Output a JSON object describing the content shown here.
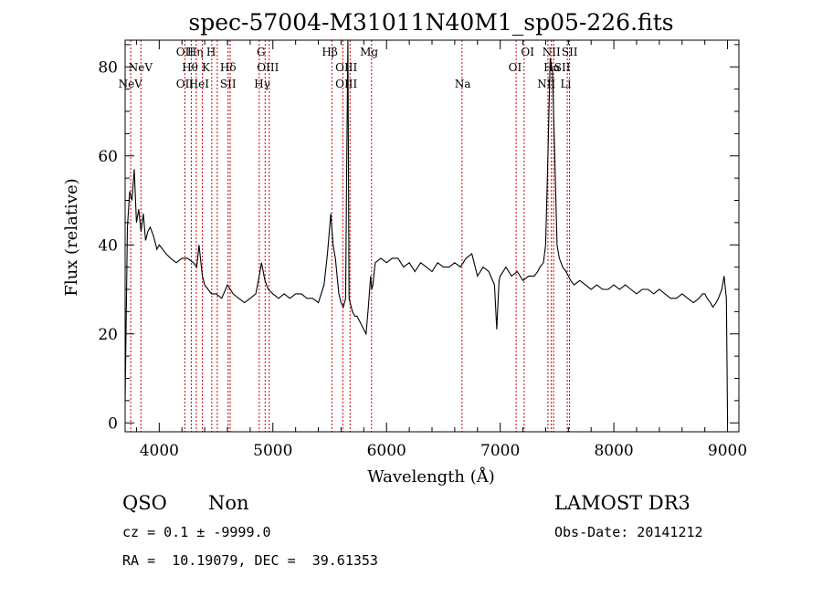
{
  "chart_data": {
    "type": "line",
    "title": "spec-57004-M31011N40M1_sp05-226.fits",
    "xlabel": "Wavelength (Å)",
    "ylabel": "Flux (relative)",
    "xlim": [
      3700,
      9100
    ],
    "ylim": [
      -2,
      86
    ],
    "x_ticks": [
      4000,
      5000,
      6000,
      7000,
      8000,
      9000
    ],
    "y_ticks": [
      0,
      20,
      40,
      60,
      80
    ],
    "grid": false,
    "line_color": "#000000",
    "marker_color": "#cc0000",
    "series": [
      {
        "x": [
          3700,
          3720,
          3740,
          3760,
          3780,
          3800,
          3820,
          3840,
          3860,
          3880,
          3900,
          3920,
          3950,
          3980,
          4000,
          4030,
          4060,
          4100,
          4150,
          4200,
          4250,
          4300,
          4330,
          4350,
          4380,
          4400,
          4430,
          4460,
          4500,
          4550,
          4600,
          4650,
          4700,
          4750,
          4800,
          4850,
          4880,
          4900,
          4930,
          4960,
          5000,
          5050,
          5100,
          5150,
          5200,
          5250,
          5300,
          5350,
          5400,
          5450,
          5480,
          5500,
          5510,
          5530,
          5550,
          5580,
          5600,
          5620,
          5640,
          5650,
          5660,
          5670,
          5680,
          5690,
          5700,
          5720,
          5740,
          5760,
          5780,
          5800,
          5820,
          5840,
          5860,
          5870,
          5880,
          5900,
          5950,
          6000,
          6050,
          6100,
          6150,
          6200,
          6250,
          6300,
          6350,
          6400,
          6450,
          6500,
          6550,
          6600,
          6650,
          6700,
          6750,
          6800,
          6850,
          6900,
          6950,
          6970,
          6990,
          7000,
          7050,
          7100,
          7150,
          7200,
          7250,
          7300,
          7330,
          7350,
          7380,
          7400,
          7420,
          7440,
          7460,
          7480,
          7500,
          7520,
          7550,
          7580,
          7600,
          7620,
          7650,
          7700,
          7750,
          7800,
          7850,
          7900,
          7950,
          8000,
          8050,
          8100,
          8150,
          8200,
          8250,
          8300,
          8350,
          8400,
          8450,
          8500,
          8550,
          8600,
          8650,
          8700,
          8750,
          8780,
          8800,
          8820,
          8850,
          8870,
          8900,
          8920,
          8950,
          8970,
          8990,
          9000
        ],
        "y": [
          5,
          44,
          52,
          50,
          57,
          45,
          48,
          43,
          47,
          41,
          43,
          44,
          42,
          39,
          40,
          39,
          38,
          37,
          36,
          37,
          37,
          36,
          35,
          40,
          33,
          31,
          30,
          29,
          29,
          28,
          31,
          29,
          28,
          27,
          28,
          29,
          33,
          36,
          32,
          30,
          29,
          28,
          29,
          28,
          29,
          29,
          28,
          28,
          27,
          31,
          38,
          44,
          47,
          40,
          37,
          29,
          27,
          26,
          28,
          60,
          86,
          28,
          27,
          26,
          25,
          24,
          24,
          23,
          22,
          21,
          20,
          26,
          33,
          30,
          31,
          36,
          37,
          36,
          37,
          37,
          35,
          36,
          34,
          36,
          35,
          34,
          36,
          35,
          35,
          36,
          35,
          37,
          38,
          33,
          35,
          34,
          31,
          21,
          32,
          33,
          35,
          33,
          34,
          32,
          33,
          33,
          34,
          35,
          36,
          40,
          60,
          82,
          79,
          60,
          40,
          37,
          35,
          34,
          33,
          32,
          31,
          32,
          31,
          30,
          31,
          30,
          30,
          31,
          30,
          31,
          30,
          29,
          30,
          30,
          29,
          30,
          29,
          28,
          28,
          29,
          28,
          27,
          28,
          29,
          29,
          28,
          27,
          26,
          27,
          28,
          30,
          33,
          28,
          0
        ]
      }
    ],
    "lines": [
      {
        "name": "NeV",
        "wl": 3746,
        "row": 3
      },
      {
        "name": "NeV",
        "wl": 3836,
        "row": 2
      },
      {
        "name": "OII",
        "wl": 4226,
        "row": 1
      },
      {
        "name": "OII",
        "wl": 4226,
        "row": 3
      },
      {
        "name": "Hη",
        "wl": 4316,
        "row": 1
      },
      {
        "name": "Hθ",
        "wl": 4271,
        "row": 2
      },
      {
        "name": "HeI",
        "wl": 4350,
        "row": 3
      },
      {
        "name": "H",
        "wl": 4456,
        "row": 1
      },
      {
        "name": "K",
        "wl": 4411,
        "row": 2
      },
      {
        "name": "Hδ",
        "wl": 4606,
        "row": 2
      },
      {
        "name": "SII",
        "wl": 4606,
        "row": 3
      },
      {
        "name": "G",
        "wl": 4896,
        "row": 1
      },
      {
        "name": "OIII",
        "wl": 4956,
        "row": 2
      },
      {
        "name": "Hγ",
        "wl": 4906,
        "row": 3
      },
      {
        "name": "Hβ",
        "wl": 5501,
        "row": 1
      },
      {
        "name": "OIII",
        "wl": 5646,
        "row": 2
      },
      {
        "name": "OIII",
        "wl": 5646,
        "row": 3
      },
      {
        "name": "Mg",
        "wl": 5846,
        "row": 1
      },
      {
        "name": "Na",
        "wl": 6671,
        "row": 3
      },
      {
        "name": "OI",
        "wl": 7241,
        "row": 1
      },
      {
        "name": "OI",
        "wl": 7131,
        "row": 2
      },
      {
        "name": "NII",
        "wl": 7451,
        "row": 1
      },
      {
        "name": "Hα",
        "wl": 7456,
        "row": 2
      },
      {
        "name": "NII",
        "wl": 7406,
        "row": 3
      },
      {
        "name": "SII",
        "wl": 7611,
        "row": 1
      },
      {
        "name": "SII",
        "wl": 7546,
        "row": 2
      },
      {
        "name": "Li",
        "wl": 7576,
        "row": 3
      }
    ],
    "line_marker_wavelengths": [
      3749,
      3839,
      4226,
      4282,
      4326,
      4380,
      4462,
      4511,
      4606,
      4624,
      4880,
      4932,
      4968,
      5519,
      5615,
      5679,
      5868,
      6664,
      7140,
      7210,
      7420,
      7450,
      7470,
      7590,
      7610
    ]
  },
  "info": {
    "class": "QSO",
    "subclass": "Non",
    "survey": "LAMOST DR3",
    "cz": "cz = 0.1 ± -9999.0",
    "obs_date": "Obs-Date: 20141212",
    "radec": "RA =  10.19079, DEC =  39.61353"
  }
}
